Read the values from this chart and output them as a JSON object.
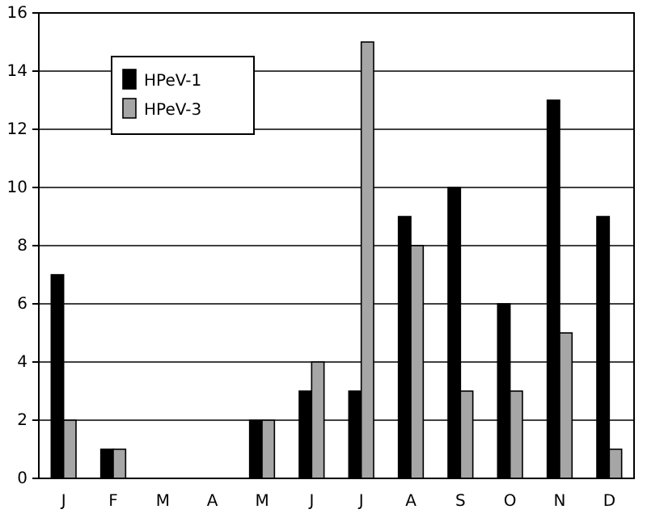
{
  "chart_data": {
    "type": "bar",
    "categories": [
      "J",
      "F",
      "M",
      "A",
      "M",
      "J",
      "J",
      "A",
      "S",
      "O",
      "N",
      "D"
    ],
    "series": [
      {
        "name": "HPeV-1",
        "color": "#000000",
        "values": [
          7,
          1,
          0,
          0,
          2,
          3,
          3,
          9,
          10,
          6,
          13,
          9
        ]
      },
      {
        "name": "HPeV-3",
        "color": "#a6a6a6",
        "values": [
          2,
          1,
          0,
          0,
          2,
          4,
          15,
          8,
          3,
          3,
          5,
          1
        ]
      }
    ],
    "ylim": [
      0,
      16
    ],
    "yticks": [
      0,
      2,
      4,
      6,
      8,
      10,
      12,
      14,
      16
    ],
    "grid": "y",
    "legend": "top left"
  }
}
